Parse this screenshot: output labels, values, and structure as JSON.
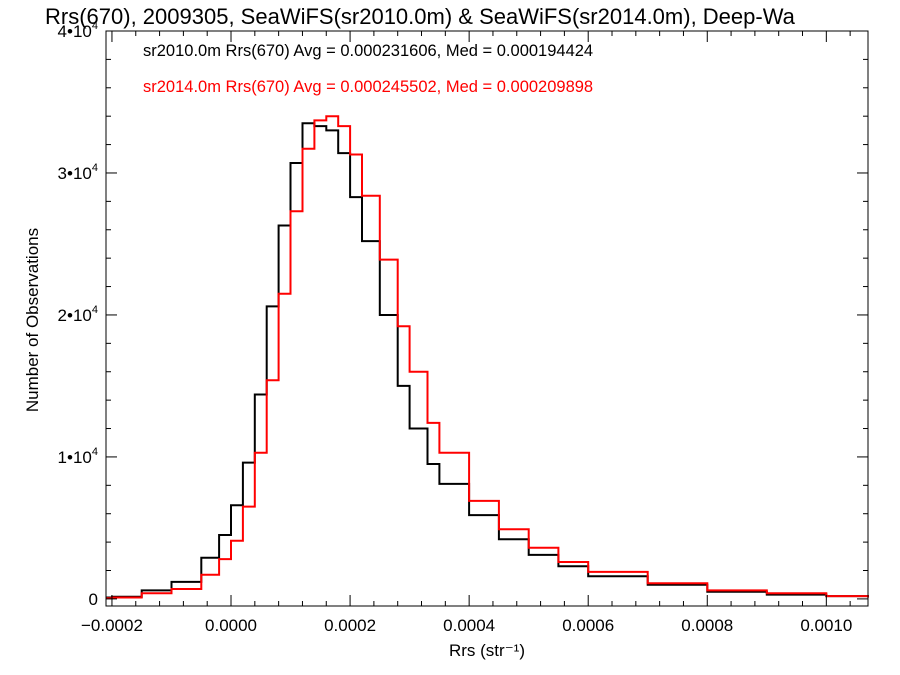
{
  "chart_data": {
    "type": "line",
    "title": "Rrs(670), 2009305, SeaWiFS(sr2010.0m) & SeaWiFS(sr2014.0m), Deep-Wa",
    "xlabel": "Rrs (str⁻¹)",
    "ylabel": "Number of Observations",
    "xlim": [
      -0.00021,
      0.00107
    ],
    "ylim": [
      -500,
      40000
    ],
    "x_ticks": [
      -0.0002,
      0.0,
      0.0002,
      0.0004,
      0.0006,
      0.0008,
      0.001
    ],
    "x_tick_labels": [
      "−0.0002",
      "0.0000",
      "0.0002",
      "0.0004",
      "0.0006",
      "0.0008",
      "0.0010"
    ],
    "y_ticks": [
      0,
      10000,
      20000,
      30000,
      40000
    ],
    "y_tick_labels": [
      {
        "base": "0",
        "exp": ""
      },
      {
        "base": "1•10",
        "exp": "4"
      },
      {
        "base": "2•10",
        "exp": "4"
      },
      {
        "base": "3•10",
        "exp": "4"
      },
      {
        "base": "4•10",
        "exp": "4"
      }
    ],
    "grid": false,
    "legend_placement": "top-left",
    "series": [
      {
        "name": "sr2010.0m",
        "color": "#000000",
        "stats_label": "sr2010.0m Rrs(670) Avg = 0.000231606, Med = 0.000194424",
        "x": [
          -0.00021,
          -0.0002,
          -0.00015,
          -0.0001,
          -5e-05,
          -2e-05,
          0.0,
          2e-05,
          4e-05,
          6e-05,
          8e-05,
          0.0001,
          0.00012,
          0.00014,
          0.00016,
          0.00018,
          0.0002,
          0.00022,
          0.00025,
          0.00028,
          0.0003,
          0.00033,
          0.00035,
          0.0004,
          0.00045,
          0.0005,
          0.00055,
          0.0006,
          0.0007,
          0.0008,
          0.0009,
          0.001,
          0.00107
        ],
        "y": [
          100,
          150,
          600,
          1200,
          2900,
          4500,
          6600,
          9600,
          14400,
          20600,
          26300,
          30700,
          33500,
          33300,
          33000,
          31400,
          28300,
          25200,
          20000,
          15000,
          12000,
          9500,
          8100,
          5900,
          4200,
          3100,
          2300,
          1600,
          1000,
          500,
          300,
          200,
          100
        ]
      },
      {
        "name": "sr2014.0m",
        "color": "#ff0000",
        "stats_label": "sr2014.0m Rrs(670) Avg = 0.000245502, Med = 0.000209898",
        "x": [
          -0.00021,
          -0.0002,
          -0.00015,
          -0.0001,
          -5e-05,
          -2e-05,
          0.0,
          2e-05,
          4e-05,
          6e-05,
          8e-05,
          0.0001,
          0.00012,
          0.00014,
          0.00016,
          0.00018,
          0.0002,
          0.00022,
          0.00025,
          0.00028,
          0.0003,
          0.00033,
          0.00035,
          0.0004,
          0.00045,
          0.0005,
          0.00055,
          0.0006,
          0.0007,
          0.0008,
          0.0009,
          0.001,
          0.00107
        ],
        "y": [
          50,
          100,
          400,
          700,
          1700,
          2800,
          4100,
          6500,
          10300,
          15400,
          21500,
          27300,
          31700,
          33700,
          34000,
          33300,
          31300,
          28400,
          23900,
          19200,
          16000,
          12400,
          10300,
          6900,
          4900,
          3600,
          2600,
          1900,
          1100,
          600,
          400,
          200,
          100
        ]
      }
    ]
  }
}
